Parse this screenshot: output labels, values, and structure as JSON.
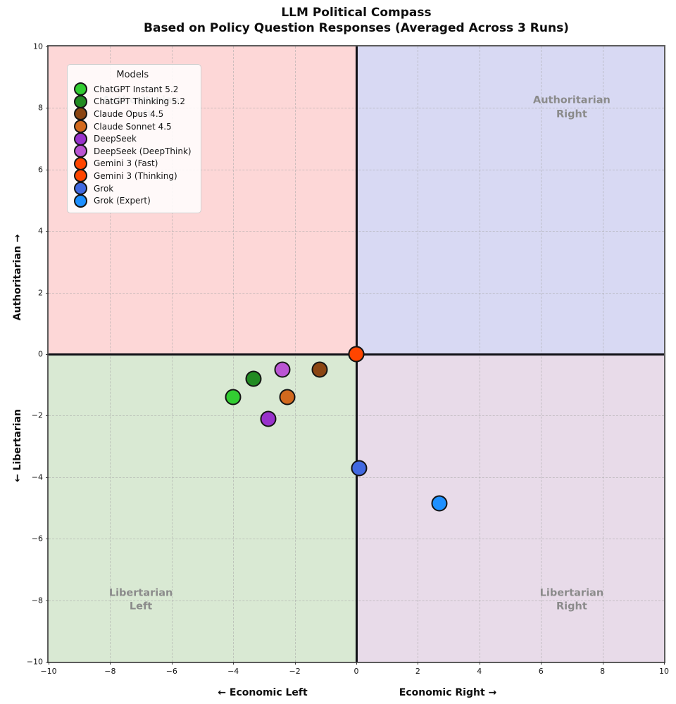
{
  "figure": {
    "title_line1": "LLM Political Compass",
    "title_line2": "Based on Policy Question Responses (Averaged Across 3 Runs)"
  },
  "chart_data": {
    "type": "scatter",
    "title": "LLM Political Compass",
    "subtitle": "Based on Policy Question Responses (Averaged Across 3 Runs)",
    "xlim": [
      -10,
      10
    ],
    "ylim": [
      -10,
      10
    ],
    "x_ticks": [
      -10,
      -8,
      -6,
      -4,
      -2,
      0,
      2,
      4,
      6,
      8,
      10
    ],
    "y_ticks": [
      -10,
      -8,
      -6,
      -4,
      -2,
      0,
      2,
      4,
      6,
      8,
      10
    ],
    "grid": "dashed",
    "xlabel_left": "← Economic Left",
    "xlabel_right": "Economic Right →",
    "ylabel_top": "Authoritarian →",
    "ylabel_bottom": "← Libertarian",
    "axis_line_color": "#101016",
    "legend": {
      "title": "Models",
      "position": "upper left"
    },
    "quadrants": [
      {
        "name": "Authoritarian Left",
        "label_line1": "Authoritarian",
        "label_line2": "Left",
        "color": "#fdd7d7",
        "label_x": -7,
        "label_y": 8
      },
      {
        "name": "Authoritarian Right",
        "label_line1": "Authoritarian",
        "label_line2": "Right",
        "color": "#d8d9f3",
        "label_x": 7,
        "label_y": 8
      },
      {
        "name": "Libertarian Left",
        "label_line1": "Libertarian",
        "label_line2": "Left",
        "color": "#d9e9d3",
        "label_x": -7,
        "label_y": -8
      },
      {
        "name": "Libertarian Right",
        "label_line1": "Libertarian",
        "label_line2": "Right",
        "color": "#e8dbe9",
        "label_x": 7,
        "label_y": -8
      }
    ],
    "series": [
      {
        "name": "ChatGPT Instant 5.2",
        "x": -4.0,
        "y": -1.4,
        "color": "#32CD32"
      },
      {
        "name": "ChatGPT Thinking 5.2",
        "x": -3.35,
        "y": -0.8,
        "color": "#228B22"
      },
      {
        "name": "Claude Opus 4.5",
        "x": -1.2,
        "y": -0.5,
        "color": "#8B4513"
      },
      {
        "name": "Claude Sonnet 4.5",
        "x": -2.25,
        "y": -1.4,
        "color": "#D2691E"
      },
      {
        "name": "DeepSeek",
        "x": -2.85,
        "y": -2.1,
        "color": "#9932CC"
      },
      {
        "name": "DeepSeek (DeepThink)",
        "x": -2.4,
        "y": -0.5,
        "color": "#BA55D3"
      },
      {
        "name": "Gemini 3 (Fast)",
        "x": 0.0,
        "y": 0.0,
        "color": "#FF4500"
      },
      {
        "name": "Gemini 3 (Thinking)",
        "x": 0.0,
        "y": 0.0,
        "color": "#FF4500"
      },
      {
        "name": "Grok",
        "x": 0.1,
        "y": -3.7,
        "color": "#4169E1"
      },
      {
        "name": "Grok (Expert)",
        "x": 2.7,
        "y": -4.85,
        "color": "#1E90FF"
      }
    ]
  }
}
